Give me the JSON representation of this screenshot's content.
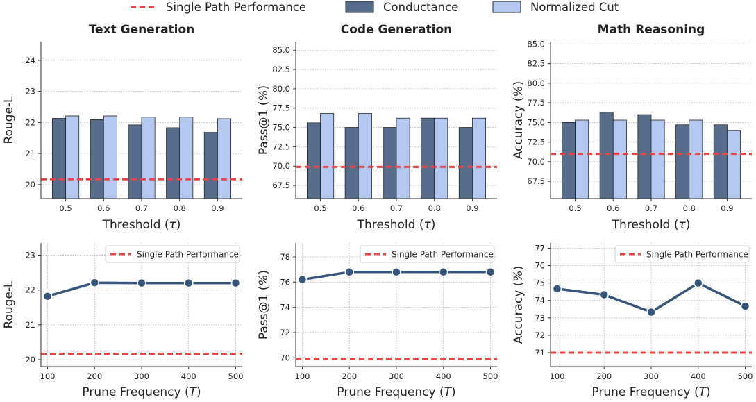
{
  "legend": {
    "items": [
      {
        "label": "Single Path Performance",
        "kind": "dashed-line",
        "color": "#ee4444"
      },
      {
        "label": "Conductance",
        "kind": "patch",
        "color": "#566e8c"
      },
      {
        "label": "Normalized Cut",
        "kind": "patch",
        "color": "#b3c9f2"
      }
    ]
  },
  "colors": {
    "conductance": "#566e8c",
    "normalized_cut": "#b3c9f2",
    "baseline": "#ee4444",
    "line": "#34557c",
    "grid": "#b0b0b0"
  },
  "chart_data": [
    {
      "type": "bar",
      "title": "Text Generation",
      "xlabel": "Threshold (τ)",
      "ylabel": "Rouge-L",
      "categories": [
        "0.5",
        "0.6",
        "0.7",
        "0.8",
        "0.9"
      ],
      "series": [
        {
          "name": "Conductance",
          "values": [
            22.13,
            22.09,
            21.92,
            21.83,
            21.68
          ]
        },
        {
          "name": "Normalized Cut",
          "values": [
            22.21,
            22.21,
            22.17,
            22.17,
            22.12
          ]
        }
      ],
      "baseline": 20.17,
      "ylim": [
        19.55,
        24.6
      ],
      "yticks": [
        20,
        21,
        22,
        23,
        24
      ],
      "ytick_labels": [
        "20",
        "21",
        "22",
        "23",
        "24"
      ],
      "grid": "y"
    },
    {
      "type": "bar",
      "title": "Code Generation",
      "xlabel": "Threshold (τ)",
      "ylabel": "Pass@1 (%)",
      "categories": [
        "0.5",
        "0.6",
        "0.7",
        "0.8",
        "0.9"
      ],
      "series": [
        {
          "name": "Conductance",
          "values": [
            75.6,
            75.0,
            75.0,
            76.2,
            75.0
          ]
        },
        {
          "name": "Normalized Cut",
          "values": [
            76.8,
            76.8,
            76.2,
            76.2,
            76.2
          ]
        }
      ],
      "baseline": 69.9,
      "ylim": [
        65.8,
        86.1
      ],
      "yticks": [
        67.5,
        70,
        72.5,
        75,
        77.5,
        80,
        82.5,
        85
      ],
      "ytick_labels": [
        "67.5",
        "70.0",
        "72.5",
        "75.0",
        "77.5",
        "80.0",
        "82.5",
        "85.0"
      ],
      "grid": "y"
    },
    {
      "type": "bar",
      "title": "Math Reasoning",
      "xlabel": "Threshold (τ)",
      "ylabel": "Accuracy (%)",
      "categories": [
        "0.5",
        "0.6",
        "0.7",
        "0.8",
        "0.9"
      ],
      "series": [
        {
          "name": "Conductance",
          "values": [
            75.0,
            76.3,
            76.0,
            74.7,
            74.7
          ]
        },
        {
          "name": "Normalized Cut",
          "values": [
            75.3,
            75.3,
            75.3,
            75.3,
            74.0
          ]
        }
      ],
      "baseline": 71.0,
      "ylim": [
        65.3,
        85.3
      ],
      "yticks": [
        67.5,
        70,
        72.5,
        75,
        77.5,
        80,
        82.5,
        85
      ],
      "ytick_labels": [
        "67.5",
        "70.0",
        "72.5",
        "75.0",
        "77.5",
        "80.0",
        "82.5",
        "85.0"
      ],
      "grid": "y"
    },
    {
      "type": "line",
      "xlabel": "Prune Frequency (T)",
      "ylabel": "Rouge-L",
      "x": [
        100,
        200,
        300,
        400,
        500
      ],
      "series": [
        {
          "values": [
            21.82,
            22.21,
            22.2,
            22.2,
            22.2
          ]
        }
      ],
      "baseline": 20.17,
      "baseline_label": "Single Path Performance",
      "xlim": [
        86,
        514
      ],
      "ylim": [
        19.8,
        23.35
      ],
      "yticks": [
        20,
        21,
        22,
        23
      ],
      "ytick_labels": [
        "20",
        "21",
        "22",
        "23"
      ],
      "xticks": [
        100,
        200,
        300,
        400,
        500
      ],
      "grid": "both",
      "legend": "top-right"
    },
    {
      "type": "line",
      "xlabel": "Prune Frequency (T)",
      "ylabel": "Pass@1 (%)",
      "x": [
        100,
        200,
        300,
        400,
        500
      ],
      "series": [
        {
          "values": [
            76.2,
            76.8,
            76.8,
            76.8,
            76.8
          ]
        }
      ],
      "baseline": 69.9,
      "baseline_label": "Single Path Performance",
      "xlim": [
        86,
        514
      ],
      "ylim": [
        69.3,
        79.1
      ],
      "yticks": [
        70,
        72,
        74,
        76,
        78
      ],
      "ytick_labels": [
        "70",
        "72",
        "74",
        "76",
        "78"
      ],
      "xticks": [
        100,
        200,
        300,
        400,
        500
      ],
      "grid": "both",
      "legend": "top-right"
    },
    {
      "type": "line",
      "xlabel": "Prune Frequency (T)",
      "ylabel": "Accuracy (%)",
      "x": [
        100,
        200,
        300,
        400,
        500
      ],
      "series": [
        {
          "values": [
            74.67,
            74.33,
            73.33,
            75.0,
            73.67
          ]
        }
      ],
      "baseline": 71.0,
      "baseline_label": "Single Path Performance",
      "xlim": [
        86,
        514
      ],
      "ylim": [
        70.2,
        77.3
      ],
      "yticks": [
        71,
        72,
        73,
        74,
        75,
        76,
        77
      ],
      "ytick_labels": [
        "71",
        "72",
        "73",
        "74",
        "75",
        "76",
        "77"
      ],
      "xticks": [
        100,
        200,
        300,
        400,
        500
      ],
      "grid": "both",
      "legend": "top-right"
    }
  ]
}
